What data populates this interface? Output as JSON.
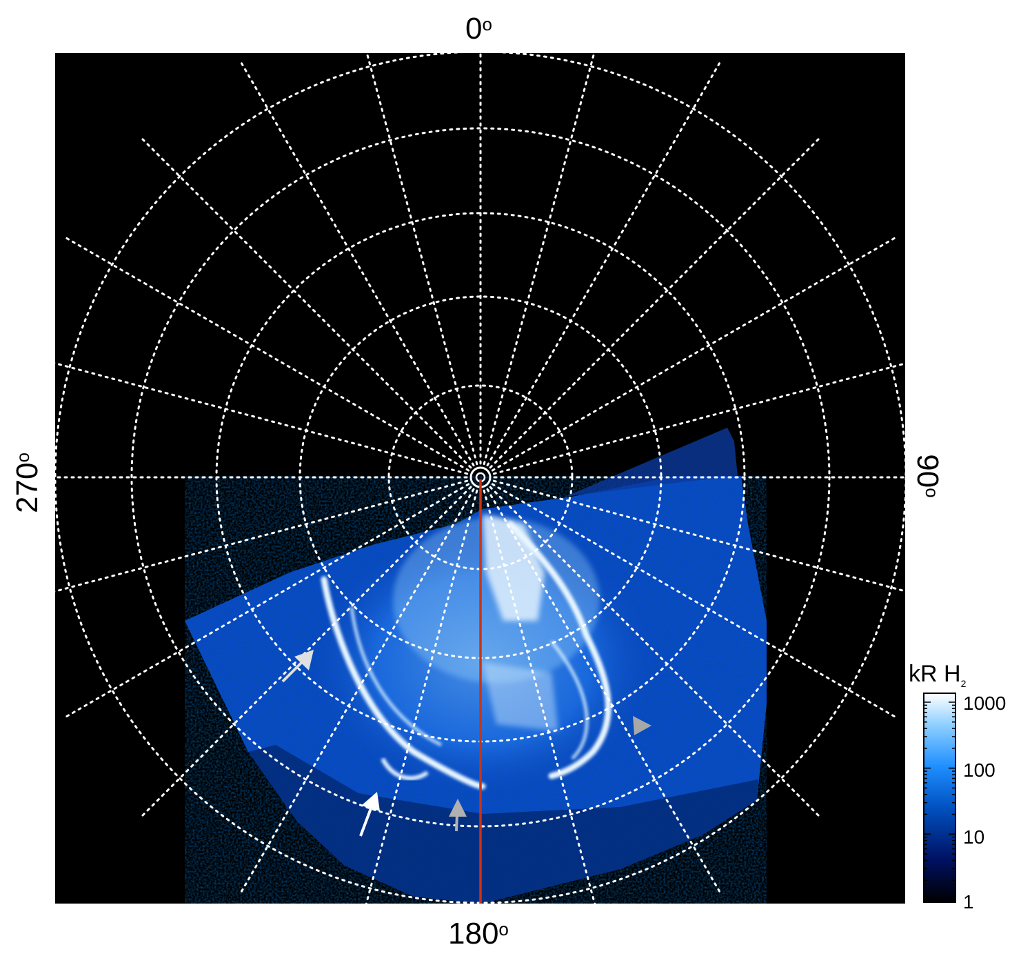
{
  "axis_labels": {
    "top": "0",
    "bottom": "180",
    "left": "270",
    "right": "90",
    "degree_symbol": "o"
  },
  "colorbar": {
    "title": "kR H",
    "title_subscript": "2",
    "scale": "log",
    "ticks": [
      "1000",
      "100",
      "10",
      "1"
    ],
    "colors": [
      "#000000",
      "#001060",
      "#0050c0",
      "#1f8fff",
      "#8fd0ff",
      "#ffffff"
    ]
  },
  "annotations": {
    "meridian_line_color": "#cc3311",
    "white_arrows": 2,
    "gray_arrows": 3
  },
  "colors": {
    "background": "#000000",
    "grid": "#ffffff"
  }
}
